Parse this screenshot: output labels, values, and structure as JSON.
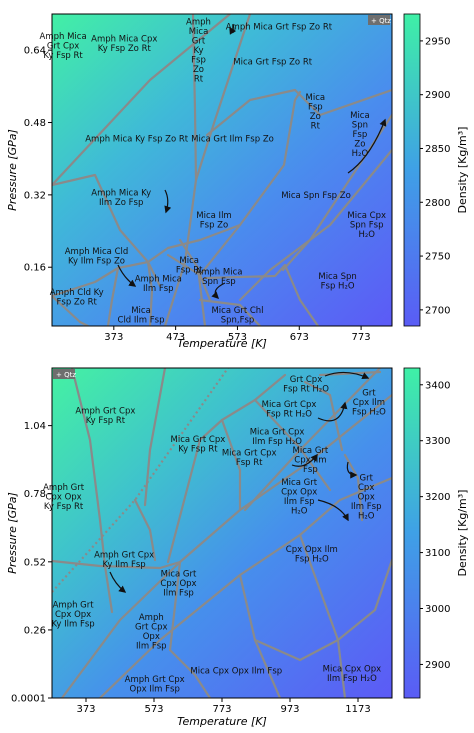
{
  "chart_data": [
    {
      "type": "heatmap",
      "title": "",
      "badge": "+ Qtz",
      "xlabel": "Temperature [K]",
      "ylabel": "Pressure [GPa]",
      "colorbar_label": "Density [Kg/m³]",
      "xlim": [
        273,
        823
      ],
      "ylim": [
        0.03,
        0.72
      ],
      "xticks": [
        373,
        473,
        573,
        673,
        773
      ],
      "yticks": [
        0.16,
        0.32,
        0.48,
        0.64
      ],
      "colorbar_range": [
        2685,
        2975
      ],
      "colorbar_ticks": [
        2700,
        2750,
        2800,
        2850,
        2900,
        2950
      ],
      "colormap": [
        "#5a5cf5",
        "#3fa0e6",
        "#3ff0a6"
      ],
      "fields": [
        {
          "label": "Amph Mica\nGrt Cpx\nKy Fsp Rt",
          "T": 291,
          "P": 0.65
        },
        {
          "label": "Amph Mica Cpx\nKy Fsp Zo Rt",
          "T": 390,
          "P": 0.655
        },
        {
          "label": "Amph\nMica\nGrt\nKy\nFsp\nZo\nRt",
          "T": 510,
          "P": 0.64
        },
        {
          "label": "Amph Mica Grt Fsp Zo Rt",
          "T": 640,
          "P": 0.692
        },
        {
          "label": "Mica Grt Fsp Zo Rt",
          "T": 630,
          "P": 0.615
        },
        {
          "label": "Mica\nFsp\nZo\nRt",
          "T": 699,
          "P": 0.505
        },
        {
          "label": "Mica\nSpn\nFsp\nZo\nH₂O",
          "T": 771,
          "P": 0.455
        },
        {
          "label": "Amph Mica Ky Fsp Zo Rt",
          "T": 410,
          "P": 0.445
        },
        {
          "label": "Mica Grt Ilm Fsp Zo",
          "T": 565,
          "P": 0.445
        },
        {
          "label": "Amph Mica Ky\nIlm Zo Fsp",
          "T": 385,
          "P": 0.315
        },
        {
          "label": "Mica Ilm\nFsp Zo",
          "T": 535,
          "P": 0.265
        },
        {
          "label": "Mica Spn Fsp Zo",
          "T": 700,
          "P": 0.32
        },
        {
          "label": "Mica Cpx\nSpn Fsp\nH₂O",
          "T": 782,
          "P": 0.255
        },
        {
          "label": "Amph Mica Cld\nKy Ilm Fsp Zo",
          "T": 345,
          "P": 0.185
        },
        {
          "label": "Mica\nFsp Rt",
          "T": 495,
          "P": 0.165
        },
        {
          "label": "Amph Mica\nIlm Fsp",
          "T": 445,
          "P": 0.125
        },
        {
          "label": "Amph Mica\nSpn Fsp",
          "T": 543,
          "P": 0.14
        },
        {
          "label": "Amph Cld Ky\nFsp Zo Rt",
          "T": 313,
          "P": 0.095
        },
        {
          "label": "Mica\nCld Ilm Fsp",
          "T": 417,
          "P": 0.055
        },
        {
          "label": "Mica Grt Chl\nSpn,Fsp",
          "T": 573,
          "P": 0.055
        },
        {
          "label": "Mica Spn\nFsp H₂O",
          "T": 735,
          "P": 0.13
        }
      ]
    },
    {
      "type": "heatmap",
      "title": "",
      "badge": "+ Qtz",
      "xlabel": "Temperature [K]",
      "ylabel": "Pressure [GPa]",
      "colorbar_label": "Density [Kg/m³]",
      "xlim": [
        273,
        1273
      ],
      "ylim": [
        0.0001,
        1.26
      ],
      "xticks": [
        373,
        573,
        773,
        973,
        1173
      ],
      "yticks": [
        0.0001,
        0.26,
        0.52,
        0.78,
        1.04
      ],
      "ytick_labels": [
        "0.0001",
        "0.26",
        "0.52",
        "0.78",
        "1.04"
      ],
      "colorbar_range": [
        2840,
        3430
      ],
      "colorbar_ticks": [
        2900,
        3000,
        3100,
        3200,
        3300,
        3400
      ],
      "colormap": [
        "#5a5cf5",
        "#3fa0e6",
        "#3ff0a6"
      ],
      "fields": [
        {
          "label": "Grt Cpx\nFsp Rt H₂O",
          "T": 1020,
          "P": 1.2
        },
        {
          "label": "Mica Grt Cpx\nFsp Rt H₂O",
          "T": 970,
          "P": 1.105
        },
        {
          "label": "Grt\nCpx Ilm\nFsp H₂O",
          "T": 1205,
          "P": 1.13
        },
        {
          "label": "Amph Grt Cpx\nKy Fsp Rt",
          "T": 430,
          "P": 1.08
        },
        {
          "label": "Mica Grt Cpx\nKy Fsp Rt",
          "T": 702,
          "P": 0.97
        },
        {
          "label": "Mica Grt Cpx\nIlm Fsp H₂O",
          "T": 935,
          "P": 1.0
        },
        {
          "label": "Mica Grt Cpx\nFsp Rt",
          "T": 853,
          "P": 0.92
        },
        {
          "label": "Mica Grt\nCpx Ilm\nFsp",
          "T": 1033,
          "P": 0.91
        },
        {
          "label": "Grt\nCpx\nOpx\nIlm Fsp\nH₂O",
          "T": 1197,
          "P": 0.77
        },
        {
          "label": "Mica Grt\nCpx Opx\nIlm Fsp\nH₂O",
          "T": 1000,
          "P": 0.77
        },
        {
          "label": "Amph Grt\nCpx Opx\nKy Fsp Rt",
          "T": 307,
          "P": 0.77
        },
        {
          "label": "Amph Grt Cpx\nKy Ilm Fsp",
          "T": 485,
          "P": 0.53
        },
        {
          "label": "Cpx Opx Ilm\nFsp H₂O",
          "T": 1037,
          "P": 0.55
        },
        {
          "label": "Mica Grt\nCpx Opx\nIlm Fsp",
          "T": 645,
          "P": 0.44
        },
        {
          "label": "Amph Grt\nCpx Opx\nKy Ilm Fsp",
          "T": 335,
          "P": 0.32
        },
        {
          "label": "Amph\nGrt Cpx\nOpx\nIlm Fsp",
          "T": 565,
          "P": 0.255
        },
        {
          "label": "Mica Cpx Opx Ilm Fsp",
          "T": 815,
          "P": 0.105
        },
        {
          "label": "Mica Cpx Opx\nIlm Fsp H₂O",
          "T": 1155,
          "P": 0.095
        },
        {
          "label": "Amph Grt Cpx\nOpx Ilm Fsp",
          "T": 575,
          "P": 0.055
        }
      ]
    }
  ]
}
